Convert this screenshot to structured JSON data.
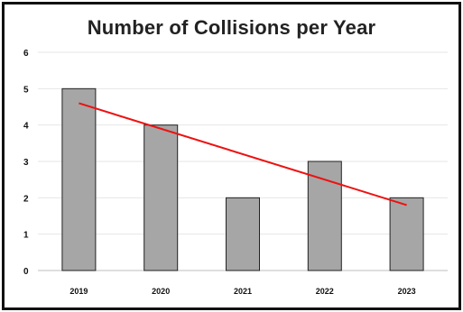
{
  "chart_data": {
    "type": "bar",
    "title": "Number of Collisions per Year",
    "categories": [
      "2019",
      "2020",
      "2021",
      "2022",
      "2023"
    ],
    "values": [
      5,
      4,
      2,
      3,
      2
    ],
    "ylim": [
      0,
      6
    ],
    "yticks": [
      "0",
      "1",
      "2",
      "3",
      "4",
      "5",
      "6"
    ],
    "grid": true,
    "trendline": {
      "type": "linear",
      "color": "#ee1111"
    },
    "bar_color": "#a6a6a6",
    "bar_edge_color": "#222222"
  }
}
